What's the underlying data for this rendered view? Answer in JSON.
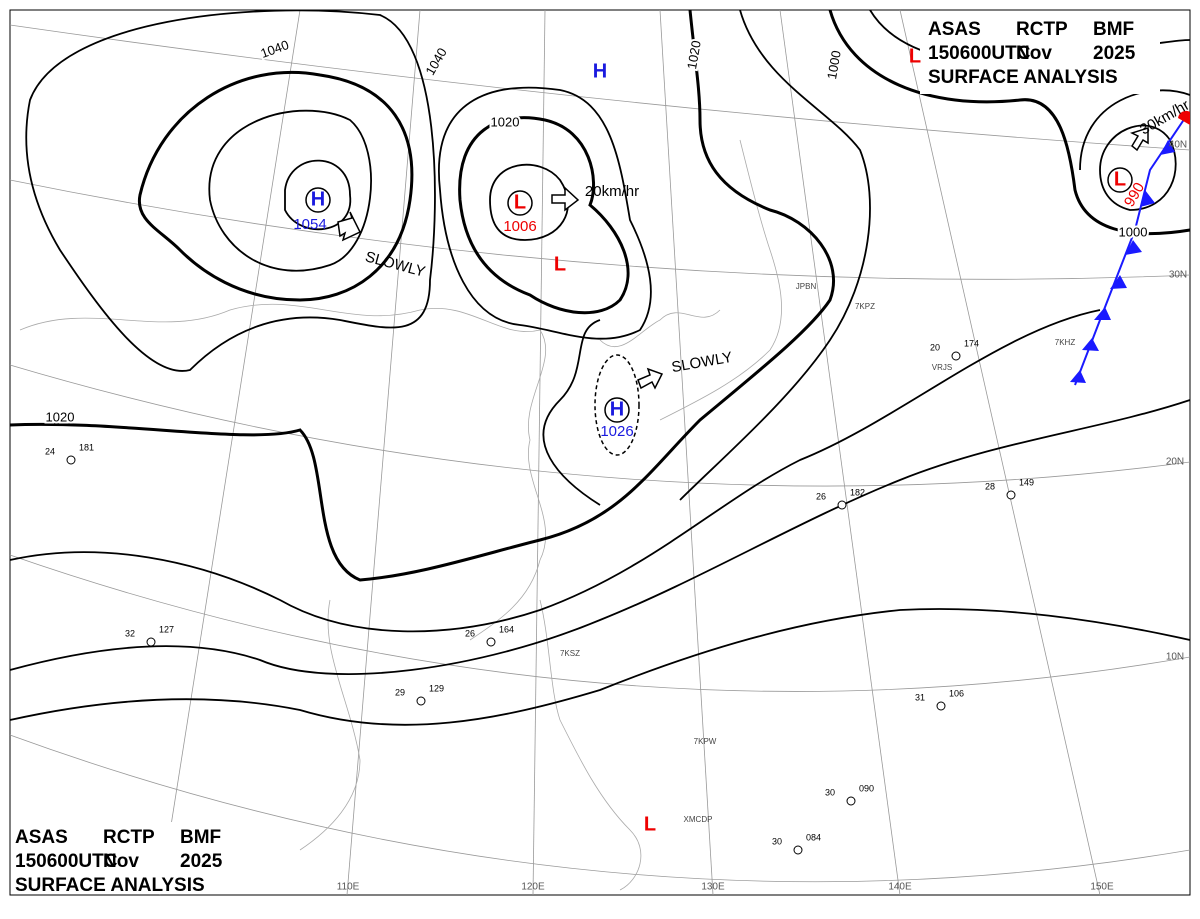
{
  "header": {
    "line1": [
      "ASAS",
      "RCTP",
      "BMF"
    ],
    "line2": [
      "150600UTC",
      "Nov",
      "2025"
    ],
    "line3": "SURFACE ANALYSIS"
  },
  "isobar_labels": [
    "1040",
    "1040",
    "1020",
    "1020",
    "1000",
    "1000",
    "1020"
  ],
  "centers": [
    {
      "symbol": "H",
      "pressure": "1054"
    },
    {
      "symbol": "L",
      "pressure": "1006"
    },
    {
      "symbol": "H",
      "pressure": "1026"
    },
    {
      "symbol": "L",
      "pressure": "990"
    },
    {
      "symbol": "H"
    },
    {
      "symbol": "L"
    },
    {
      "symbol": "L"
    },
    {
      "symbol": "L"
    }
  ],
  "movements": [
    "SLOWLY",
    "20km/hr",
    "SLOWLY",
    "30km/hr"
  ],
  "grid_labels": {
    "lat": [
      "40N",
      "30N",
      "20N",
      "10N"
    ],
    "lon": [
      "110E",
      "120E",
      "130E",
      "140E",
      "150E"
    ]
  },
  "stations": [
    {
      "temp": "24",
      "pressure": "181"
    },
    {
      "temp": "29",
      "pressure": "129"
    },
    {
      "temp": "32",
      "pressure": "127"
    },
    {
      "temp": "31",
      "pressure": "106"
    },
    {
      "temp": "28",
      "pressure": "149"
    },
    {
      "temp": "26",
      "pressure": "182"
    },
    {
      "temp": "30",
      "pressure": "084"
    },
    {
      "temp": "30",
      "pressure": "090"
    },
    {
      "temp": "20",
      "pressure": "174"
    },
    {
      "temp": "26",
      "pressure": "164"
    }
  ],
  "station_ids": [
    "JPBN",
    "7KPZ",
    "VRJS",
    "7KHZ",
    "7KSZ",
    "XMCDP",
    "7KPW"
  ]
}
